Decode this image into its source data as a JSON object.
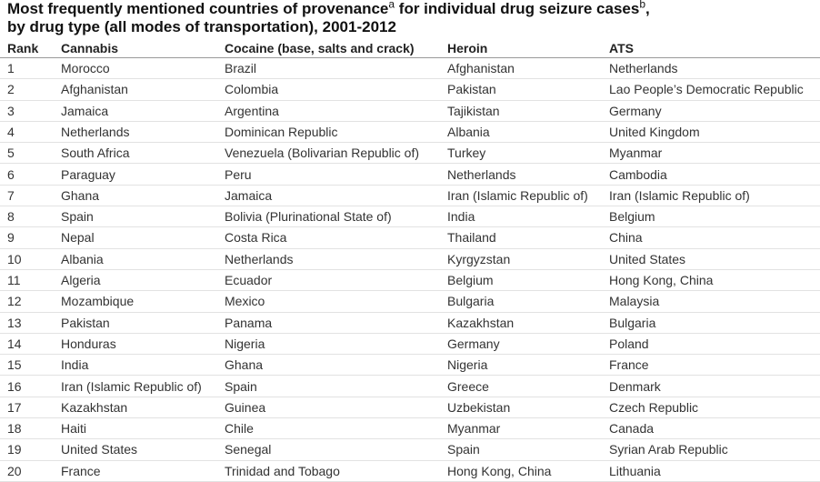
{
  "title": [
    "Most frequently mentioned countries of provenance",
    "a",
    " for individual drug seizure cases",
    "b",
    ",",
    "by drug type (all modes of transportation), 2001-2012"
  ],
  "table": {
    "header": [
      "Rank",
      "Cannabis",
      "Cocaine (base, salts and crack)",
      "Heroin",
      "ATS"
    ],
    "rows": [
      [
        1,
        "Morocco",
        "Brazil",
        "Afghanistan",
        "Netherlands"
      ],
      [
        2,
        "Afghanistan",
        "Colombia",
        "Pakistan",
        "Lao People’s Democratic Republic"
      ],
      [
        3,
        "Jamaica",
        "Argentina",
        "Tajikistan",
        "Germany"
      ],
      [
        4,
        "Netherlands",
        "Dominican Republic",
        "Albania",
        "United Kingdom"
      ],
      [
        5,
        "South Africa",
        "Venezuela (Bolivarian Republic of)",
        "Turkey",
        "Myanmar"
      ],
      [
        6,
        "Paraguay",
        "Peru",
        "Netherlands",
        "Cambodia"
      ],
      [
        7,
        "Ghana",
        "Jamaica",
        "Iran (Islamic Republic of)",
        "Iran (Islamic Republic of)"
      ],
      [
        8,
        "Spain",
        "Bolivia (Plurinational State of)",
        "India",
        "Belgium"
      ],
      [
        9,
        "Nepal",
        "Costa Rica",
        "Thailand",
        "China"
      ],
      [
        10,
        "Albania",
        "Netherlands",
        "Kyrgyzstan",
        "United States"
      ],
      [
        11,
        "Algeria",
        "Ecuador",
        "Belgium",
        "Hong Kong, China"
      ],
      [
        12,
        "Mozambique",
        "Mexico",
        "Bulgaria",
        "Malaysia"
      ],
      [
        13,
        "Pakistan",
        "Panama",
        "Kazakhstan",
        "Bulgaria"
      ],
      [
        14,
        "Honduras",
        "Nigeria",
        "Germany",
        "Poland"
      ],
      [
        15,
        "India",
        "Ghana",
        "Nigeria",
        "France"
      ],
      [
        16,
        "Iran (Islamic Republic of)",
        "Spain",
        "Greece",
        "Denmark"
      ],
      [
        17,
        "Kazakhstan",
        "Guinea",
        "Uzbekistan",
        "Czech Republic"
      ],
      [
        18,
        "Haiti",
        "Chile",
        "Myanmar",
        "Canada"
      ],
      [
        19,
        "United States",
        "Senegal",
        "Spain",
        "Syrian Arab Republic"
      ],
      [
        20,
        "France",
        "Trinidad and Tobago",
        "Hong Kong, China",
        "Lithuania"
      ]
    ]
  }
}
